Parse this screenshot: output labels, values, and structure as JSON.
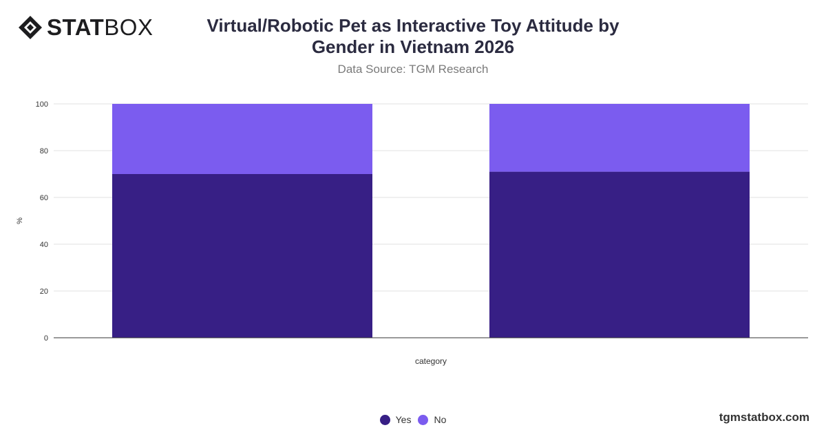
{
  "header": {
    "logo_bold": "STAT",
    "logo_light": "BOX",
    "title": "Virtual/Robotic Pet as Interactive Toy Attitude by Gender in Vietnam 2026",
    "subtitle": "Data Source: TGM Research"
  },
  "footer": {
    "brand": "tgmstatbox.com"
  },
  "colors": {
    "yes": "#371f85",
    "no": "#7b5cef"
  },
  "chart_data": {
    "type": "bar",
    "stacked": true,
    "title": "Virtual/Robotic Pet as Interactive Toy Attitude by Gender in Vietnam 2026",
    "xlabel": "category",
    "ylabel": "%",
    "ylim": [
      0,
      100
    ],
    "yticks": [
      0,
      20,
      40,
      60,
      80,
      100
    ],
    "grid": true,
    "legend_position": "bottom",
    "categories": [
      "",
      ""
    ],
    "series": [
      {
        "name": "Yes",
        "values": [
          70,
          71
        ],
        "color": "#371f85"
      },
      {
        "name": "No",
        "values": [
          30,
          29
        ],
        "color": "#7b5cef"
      }
    ]
  }
}
